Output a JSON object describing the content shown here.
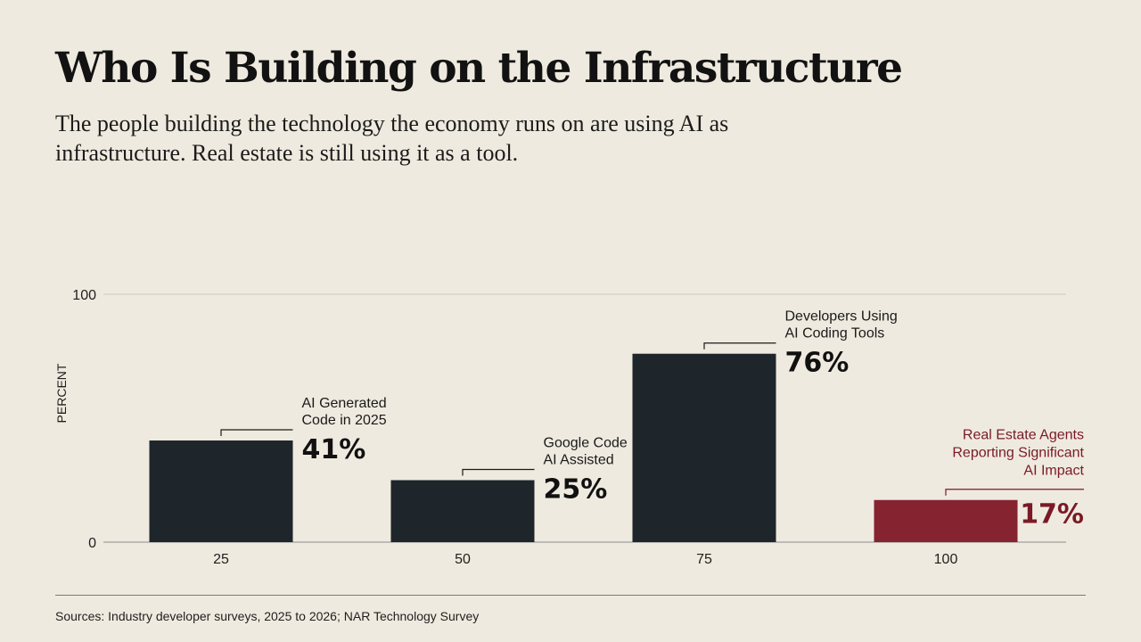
{
  "title": "Who Is Building on the Infrastructure",
  "subtitle": "The people building the technology the economy runs on are using AI as infrastructure. Real estate is still using it as a tool.",
  "sources": "Sources: Industry developer surveys, 2025 to 2026; NAR Technology Survey",
  "colors": {
    "background": "#efeadf",
    "bar_default": "#1e252b",
    "bar_highlight": "#862330",
    "highlight_text": "#7a1a26",
    "grid": "#cfcac0",
    "axis": "#8c8c8c",
    "text": "#121212"
  },
  "chart_data": {
    "type": "bar",
    "ylabel": "PERCENT",
    "xlabel": "",
    "ylim": [
      0,
      100
    ],
    "yticks": [
      0,
      100
    ],
    "categories": [
      "25",
      "50",
      "75",
      "100"
    ],
    "values": [
      41,
      25,
      76,
      17
    ],
    "bar_labels": [
      [
        "AI Generated",
        "Code in 2025"
      ],
      [
        "Google Code",
        "AI Assisted"
      ],
      [
        "Developers Using",
        "AI Coding Tools"
      ],
      [
        "Real Estate Agents",
        "Reporting Significant",
        "AI Impact"
      ]
    ],
    "value_labels": [
      "41%",
      "25%",
      "76%",
      "17%"
    ],
    "highlight_index": 3,
    "grid": true
  }
}
